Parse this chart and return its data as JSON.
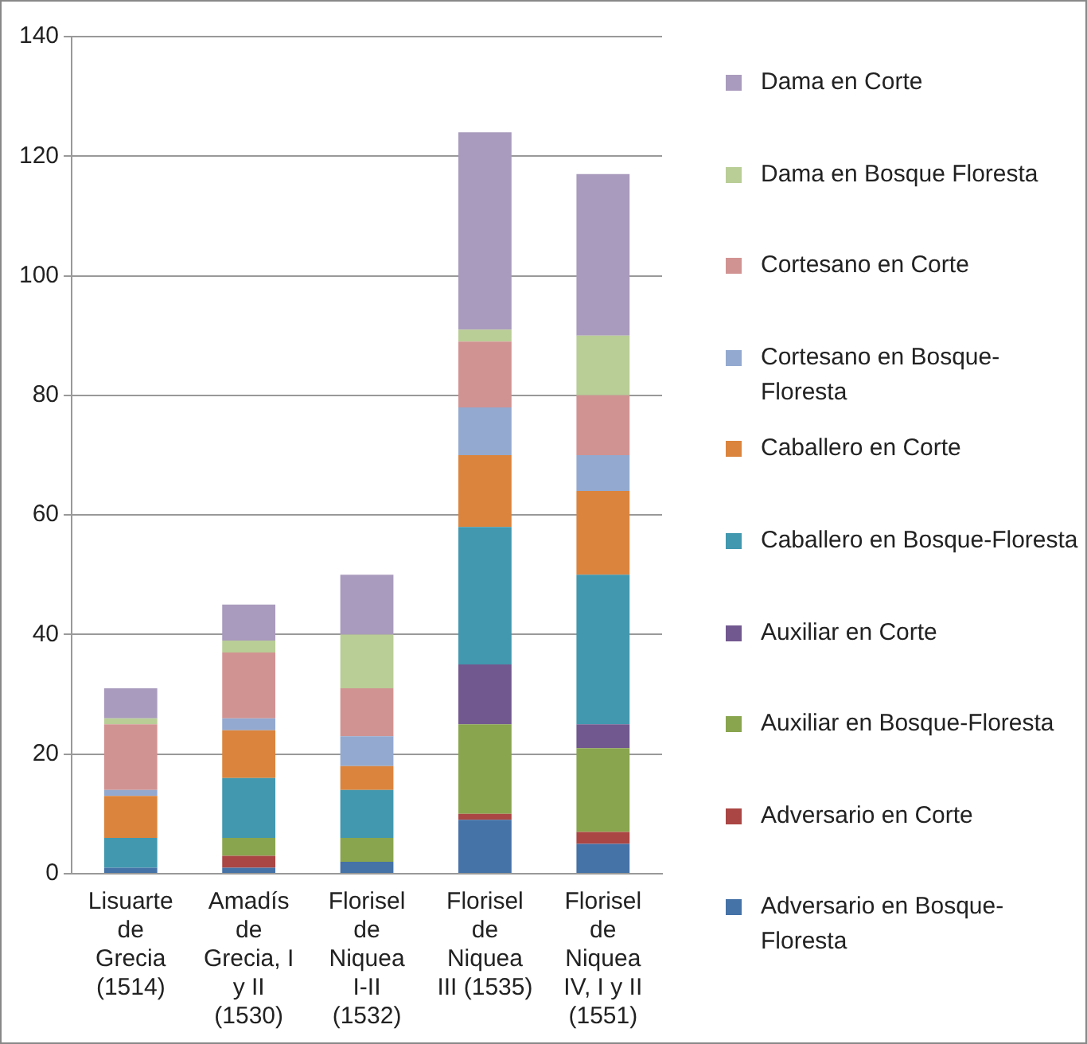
{
  "chart_data": {
    "type": "bar",
    "stacked": true,
    "categories": [
      "Lisuarte de Grecia (1514)",
      "Amadís de Grecia, I y II (1530)",
      "Florisel de Niquea I-II (1532)",
      "Florisel de Niquea III (1535)",
      "Florisel de Niquea IV, I y II (1551)"
    ],
    "series": [
      {
        "name": "Adversario en Bosque-Floresta",
        "color": "#4572a7",
        "values": [
          1,
          1,
          2,
          9,
          5
        ]
      },
      {
        "name": "Adversario en Corte",
        "color": "#aa4643",
        "values": [
          0,
          2,
          0,
          1,
          2
        ]
      },
      {
        "name": "Auxiliar en Bosque-Floresta",
        "color": "#89a54e",
        "values": [
          0,
          3,
          4,
          15,
          14
        ]
      },
      {
        "name": "Auxiliar en Corte",
        "color": "#71588f",
        "values": [
          0,
          0,
          0,
          10,
          4
        ]
      },
      {
        "name": "Caballero en Bosque-Floresta",
        "color": "#4198af",
        "values": [
          5,
          10,
          8,
          23,
          25
        ]
      },
      {
        "name": "Caballero en Corte",
        "color": "#db843d",
        "values": [
          7,
          8,
          4,
          12,
          14
        ]
      },
      {
        "name": "Cortesano en Bosque-Floresta",
        "color": "#93a9cf",
        "values": [
          1,
          2,
          5,
          8,
          6
        ]
      },
      {
        "name": "Cortesano en Corte",
        "color": "#d19392",
        "values": [
          11,
          11,
          8,
          11,
          10
        ]
      },
      {
        "name": "Dama en Bosque Floresta",
        "color": "#b9cd96",
        "values": [
          1,
          2,
          9,
          2,
          10
        ]
      },
      {
        "name": "Dama en Corte",
        "color": "#a99bbd",
        "values": [
          5,
          6,
          10,
          33,
          27
        ]
      }
    ],
    "ylim": [
      0,
      140
    ],
    "yticks": [
      0,
      20,
      40,
      60,
      80,
      100,
      120,
      140
    ],
    "grid": "y",
    "legend": "right"
  }
}
